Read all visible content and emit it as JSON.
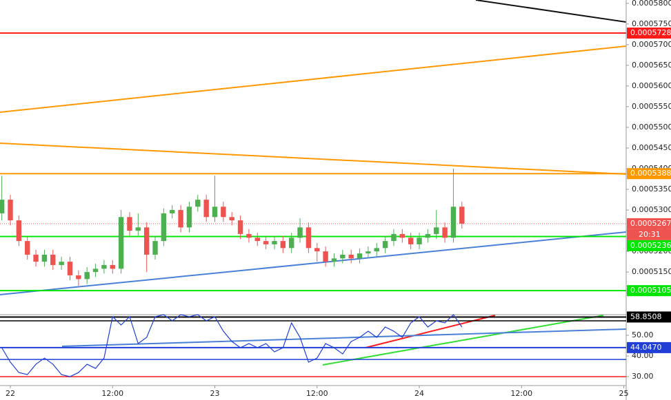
{
  "chart_data": [
    {
      "type": "candlestick",
      "x": [
        -1,
        0,
        1,
        2,
        3,
        4,
        5,
        6,
        7,
        8,
        9,
        10,
        11,
        12,
        13,
        14,
        15,
        16,
        17,
        18,
        19,
        20,
        21,
        22,
        23,
        24,
        25,
        26,
        27,
        28,
        29,
        30,
        31,
        32,
        33,
        34,
        35,
        36,
        37,
        38,
        39,
        40,
        41,
        42,
        43,
        44,
        45,
        46,
        47,
        48,
        49,
        50,
        51,
        52,
        53
      ],
      "open": [
        0.0005292,
        0.0005325,
        0.0005275,
        0.0005225,
        0.0005192,
        0.0005175,
        0.0005192,
        0.0005167,
        0.0005175,
        0.0005142,
        0.0005133,
        0.000515,
        0.0005158,
        0.0005167,
        0.0005158,
        0.0005283,
        0.000525,
        0.0005258,
        0.0005192,
        0.0005225,
        0.0005292,
        0.00053,
        0.0005258,
        0.0005308,
        0.0005325,
        0.0005283,
        0.0005308,
        0.0005283,
        0.0005275,
        0.0005242,
        0.0005233,
        0.0005225,
        0.0005217,
        0.0005225,
        0.0005208,
        0.0005233,
        0.0005258,
        0.0005208,
        0.00052,
        0.0005175,
        0.0005183,
        0.0005192,
        0.0005183,
        0.0005195,
        0.00052,
        0.0005208,
        0.0005225,
        0.0005242,
        0.0005233,
        0.0005217,
        0.0005233,
        0.0005242,
        0.0005258,
        0.0005233,
        0.0005308
      ],
      "high": [
        0.0005383,
        0.0005337,
        0.0005287,
        0.0005237,
        0.0005204,
        0.0005204,
        0.0005204,
        0.0005187,
        0.0005187,
        0.0005154,
        0.0005162,
        0.000517,
        0.0005179,
        0.0005179,
        0.00053,
        0.0005295,
        0.0005292,
        0.000527,
        0.0005237,
        0.0005304,
        0.0005312,
        0.0005312,
        0.000532,
        0.0005337,
        0.0005337,
        0.0005383,
        0.000532,
        0.0005295,
        0.0005287,
        0.0005254,
        0.0005245,
        0.0005237,
        0.0005237,
        0.0005237,
        0.0005245,
        0.000528,
        0.000527,
        0.000522,
        0.0005212,
        0.0005195,
        0.0005204,
        0.0005204,
        0.0005207,
        0.0005212,
        0.000522,
        0.0005237,
        0.0005254,
        0.0005254,
        0.0005245,
        0.0005245,
        0.0005254,
        0.00053,
        0.000527,
        0.00054,
        0.000532
      ],
      "low": [
        0.0005275,
        0.0005263,
        0.0005213,
        0.000518,
        0.0005163,
        0.0005163,
        0.0005155,
        0.0005155,
        0.000513,
        0.0005117,
        0.0005121,
        0.0005138,
        0.0005146,
        0.0005146,
        0.0005146,
        0.0005238,
        0.0005238,
        0.000515,
        0.000518,
        0.0005213,
        0.000528,
        0.0005246,
        0.0005246,
        0.0005296,
        0.0005271,
        0.0005271,
        0.0005271,
        0.0005263,
        0.000523,
        0.0005221,
        0.0005213,
        0.0005205,
        0.0005205,
        0.0005196,
        0.0005196,
        0.0005221,
        0.0005196,
        0.0005175,
        0.0005163,
        0.0005163,
        0.0005171,
        0.0005171,
        0.0005171,
        0.0005183,
        0.0005188,
        0.0005196,
        0.0005213,
        0.0005221,
        0.0005205,
        0.0005205,
        0.0005221,
        0.000523,
        0.0005221,
        0.0005221,
        0.0005255
      ],
      "close": [
        0.0005325,
        0.0005275,
        0.0005225,
        0.0005192,
        0.0005175,
        0.0005192,
        0.0005167,
        0.0005175,
        0.0005142,
        0.0005133,
        0.000515,
        0.0005158,
        0.0005167,
        0.0005158,
        0.0005283,
        0.000525,
        0.0005258,
        0.0005192,
        0.0005225,
        0.0005292,
        0.00053,
        0.0005258,
        0.0005308,
        0.0005325,
        0.0005283,
        0.0005308,
        0.0005283,
        0.0005275,
        0.0005242,
        0.0005233,
        0.0005225,
        0.0005217,
        0.0005225,
        0.0005208,
        0.0005233,
        0.0005258,
        0.0005208,
        0.00052,
        0.0005175,
        0.0005183,
        0.0005192,
        0.0005183,
        0.0005195,
        0.00052,
        0.0005208,
        0.0005225,
        0.0005242,
        0.0005233,
        0.0005217,
        0.0005233,
        0.0005242,
        0.0005258,
        0.0005233,
        0.0005308,
        0.0005267
      ],
      "up_color": "#4caf50",
      "down_color": "#ef5350",
      "xlim": [
        -1.214,
        72.28
      ],
      "ylim": [
        0.0005047,
        0.0005808
      ],
      "yticks": [
        {
          "value": 0.00051,
          "label": "0.0005100"
        },
        {
          "value": 0.000515,
          "label": "0.0005150"
        },
        {
          "value": 0.00052,
          "label": "0.0005200"
        },
        {
          "value": 0.000525,
          "label": "0.0005250"
        },
        {
          "value": 0.00053,
          "label": "0.0005300"
        },
        {
          "value": 0.000535,
          "label": "0.0005350"
        },
        {
          "value": 0.00054,
          "label": "0.0005400"
        },
        {
          "value": 0.000545,
          "label": "0.0005450"
        },
        {
          "value": 0.00055,
          "label": "0.0005500"
        },
        {
          "value": 0.000555,
          "label": "0.0005550"
        },
        {
          "value": 0.00056,
          "label": "0.0005600"
        },
        {
          "value": 0.000565,
          "label": "0.0005650"
        },
        {
          "value": 0.00057,
          "label": "0.0005700"
        },
        {
          "value": 0.000575,
          "label": "0.0005750"
        },
        {
          "value": 0.00058,
          "label": "0.0005800"
        }
      ],
      "levels": [
        {
          "value": 0.0005728,
          "color": "#ff1a1a"
        },
        {
          "value": 0.0005388,
          "color": "#ff9800"
        },
        {
          "value": 0.0005267,
          "color": "#ef5350",
          "style": "dotted",
          "countdown": "20:31"
        },
        {
          "value": 0.0005236,
          "color": "#00e600"
        },
        {
          "value": 0.0005105,
          "color": "#00e600"
        }
      ]
    },
    {
      "type": "line",
      "x": [
        -1,
        0,
        1,
        2,
        3,
        4,
        5,
        6,
        7,
        8,
        9,
        10,
        11,
        12,
        13,
        14,
        15,
        16,
        17,
        18,
        19,
        20,
        21,
        22,
        23,
        24,
        25,
        26,
        27,
        28,
        29,
        30,
        31,
        32,
        33,
        34,
        35,
        36,
        37,
        38,
        39,
        40,
        41,
        42,
        43,
        44,
        45,
        46,
        47,
        48,
        49,
        50,
        51,
        52,
        53
      ],
      "series": [
        {
          "color": "#1f3fd6",
          "values": [
            44,
            37,
            32,
            31,
            36,
            39,
            36,
            31,
            30,
            32,
            36,
            34,
            39,
            59,
            55,
            59,
            46,
            49,
            59,
            60,
            57,
            60,
            59,
            60,
            57,
            59,
            52,
            47,
            44,
            46,
            44,
            46,
            42,
            44,
            56,
            49,
            37,
            39,
            46,
            44,
            41,
            47,
            49,
            52,
            49,
            54,
            52,
            49,
            56,
            59,
            54,
            57,
            56,
            60,
            54
          ]
        }
      ],
      "xlim": [
        -1.214,
        72.28
      ],
      "xticks": [
        {
          "value": 0,
          "label": "22"
        },
        {
          "value": 12,
          "label": "12:00"
        },
        {
          "value": 24,
          "label": "23"
        },
        {
          "value": 36,
          "label": "12:00"
        },
        {
          "value": 48,
          "label": "24"
        },
        {
          "value": 60,
          "label": "12:00"
        },
        {
          "value": 72,
          "label": "25"
        }
      ],
      "ylim": [
        25.7,
        60
      ],
      "yticks": [
        {
          "value": 30,
          "label": "30.00"
        },
        {
          "value": 40,
          "label": "40.00"
        },
        {
          "value": 50,
          "label": "50.00"
        }
      ],
      "levels": [
        {
          "value": 58.8508,
          "color": "#000000"
        },
        {
          "value": 44.047,
          "label": "44.0470",
          "color": "#1f3fd6"
        }
      ],
      "lines": [
        {
          "value": 57,
          "color": "#000000"
        },
        {
          "value": 38.3,
          "color": "#1f3fd6"
        },
        {
          "value": 30,
          "color": "#ff1a1a"
        }
      ]
    }
  ]
}
